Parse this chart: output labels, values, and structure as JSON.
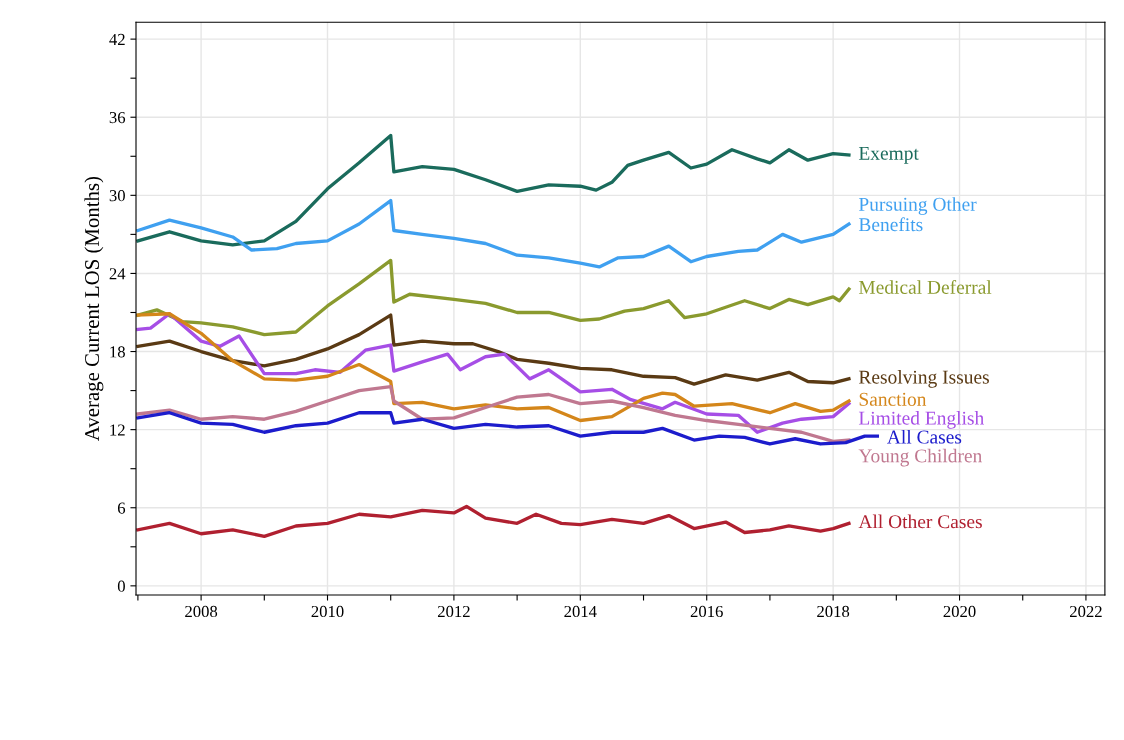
{
  "chart_data": {
    "type": "line",
    "ylabel": "Average Current LOS (Months)",
    "xlim": [
      2006.97,
      2022.3
    ],
    "ylim": [
      -0.7,
      43.3
    ],
    "xticks": [
      {
        "value": 2007,
        "label": null
      },
      2008,
      {
        "value": 2009,
        "label": null
      },
      2010,
      {
        "value": 2011,
        "label": null
      },
      2012,
      {
        "value": 2013,
        "label": null
      },
      2014,
      {
        "value": 2015,
        "label": null
      },
      2016,
      {
        "value": 2017,
        "label": null
      },
      2018,
      {
        "value": 2019,
        "label": null
      },
      2020,
      {
        "value": 2021,
        "label": null
      },
      2022
    ],
    "yticks": [
      0,
      {
        "value": 3,
        "label": null
      },
      6,
      {
        "value": 9,
        "label": null
      },
      12,
      {
        "value": 15,
        "label": null
      },
      18,
      {
        "value": 21,
        "label": null
      },
      24,
      {
        "value": 27,
        "label": null
      },
      30,
      {
        "value": 33,
        "label": null
      },
      36,
      {
        "value": 39,
        "label": null
      },
      42
    ],
    "grid": true,
    "legend": false,
    "marker": "none",
    "line_style": "solid",
    "series": [
      {
        "name": "Exempt",
        "color": "#1a6b5c",
        "x": [
          2007,
          2007.5,
          2008,
          2008.5,
          2009,
          2009.5,
          2010,
          2010.5,
          2011.0,
          2011.05,
          2011.5,
          2012,
          2012.5,
          2013,
          2013.5,
          2014,
          2014.25,
          2014.5,
          2014.75,
          2015,
          2015.4,
          2015.75,
          2016,
          2016.4,
          2016.8,
          2017,
          2017.3,
          2017.6,
          2018,
          2018.25
        ],
        "values": [
          26.5,
          27.2,
          26.5,
          26.2,
          26.5,
          28,
          30.5,
          32.5,
          34.6,
          31.8,
          32.2,
          32.0,
          31.2,
          30.3,
          30.8,
          30.7,
          30.4,
          31.0,
          32.3,
          32.7,
          33.3,
          32.1,
          32.4,
          33.5,
          32.8,
          32.5,
          33.5,
          32.7,
          33.2,
          33.1
        ]
      },
      {
        "name": "Pursuing Other\nBenefits",
        "color": "#3fa0f0",
        "x": [
          2007,
          2007.5,
          2008,
          2008.5,
          2008.8,
          2009.2,
          2009.5,
          2010,
          2010.5,
          2011.0,
          2011.05,
          2011.5,
          2012,
          2012.5,
          2013,
          2013.5,
          2014,
          2014.3,
          2014.6,
          2015,
          2015.4,
          2015.75,
          2016,
          2016.5,
          2016.8,
          2017.2,
          2017.5,
          2018,
          2018.25
        ],
        "values": [
          27.3,
          28.1,
          27.5,
          26.8,
          25.8,
          25.9,
          26.3,
          26.5,
          27.8,
          29.6,
          27.3,
          27.0,
          26.7,
          26.3,
          25.4,
          25.2,
          24.8,
          24.5,
          25.2,
          25.3,
          26.1,
          24.9,
          25.3,
          25.7,
          25.8,
          27.0,
          26.4,
          27.0,
          27.8
        ]
      },
      {
        "name": "Medical Deferral",
        "color": "#8a9a2e",
        "x": [
          2007,
          2007.3,
          2007.7,
          2008,
          2008.5,
          2009,
          2009.5,
          2010,
          2010.5,
          2011.0,
          2011.05,
          2011.3,
          2012,
          2012.5,
          2013,
          2013.5,
          2014,
          2014.3,
          2014.7,
          2015,
          2015.4,
          2015.65,
          2016,
          2016.6,
          2017,
          2017.3,
          2017.6,
          2018,
          2018.1,
          2018.25
        ],
        "values": [
          20.8,
          21.2,
          20.3,
          20.2,
          19.9,
          19.3,
          19.5,
          21.5,
          23.2,
          25.0,
          21.8,
          22.4,
          22.0,
          21.7,
          21.0,
          21.0,
          20.4,
          20.5,
          21.1,
          21.3,
          21.9,
          20.6,
          20.9,
          21.9,
          21.3,
          22.0,
          21.6,
          22.2,
          21.9,
          22.8
        ]
      },
      {
        "name": "Resolving Issues",
        "color": "#5a3a14",
        "x": [
          2007,
          2007.5,
          2008,
          2008.5,
          2009,
          2009.5,
          2010,
          2010.5,
          2011.0,
          2011.05,
          2011.5,
          2012,
          2012.3,
          2012.7,
          2013,
          2013.5,
          2014,
          2014.5,
          2015,
          2015.5,
          2015.8,
          2016.3,
          2016.8,
          2017.3,
          2017.6,
          2018,
          2018.25
        ],
        "values": [
          18.4,
          18.8,
          18.0,
          17.3,
          16.9,
          17.4,
          18.2,
          19.3,
          20.8,
          18.5,
          18.8,
          18.6,
          18.6,
          18.0,
          17.4,
          17.1,
          16.7,
          16.6,
          16.1,
          16.0,
          15.5,
          16.2,
          15.8,
          16.4,
          15.7,
          15.6,
          15.9
        ]
      },
      {
        "name": "Limited English",
        "color": "#a64ee6",
        "x": [
          2007,
          2007.2,
          2007.5,
          2008,
          2008.3,
          2008.6,
          2009,
          2009.5,
          2009.8,
          2010.2,
          2010.6,
          2011.0,
          2011.05,
          2011.5,
          2011.9,
          2012.1,
          2012.5,
          2012.8,
          2013.2,
          2013.5,
          2014,
          2014.5,
          2014.8,
          2015.3,
          2015.5,
          2016,
          2016.5,
          2016.8,
          2017.2,
          2017.5,
          2018,
          2018.25
        ],
        "values": [
          19.7,
          19.8,
          20.9,
          18.8,
          18.4,
          19.2,
          16.3,
          16.3,
          16.6,
          16.4,
          18.1,
          18.5,
          16.5,
          17.2,
          17.8,
          16.6,
          17.6,
          17.8,
          15.9,
          16.6,
          14.9,
          15.1,
          14.3,
          13.6,
          14.1,
          13.2,
          13.1,
          11.8,
          12.5,
          12.8,
          13.0,
          14.0
        ]
      },
      {
        "name": "Sanction",
        "color": "#d4861a",
        "x": [
          2007,
          2007.5,
          2008,
          2008.5,
          2009,
          2009.5,
          2010,
          2010.5,
          2011.0,
          2011.05,
          2011.5,
          2012,
          2012.5,
          2013,
          2013.5,
          2014,
          2014.5,
          2015,
          2015.3,
          2015.5,
          2015.8,
          2016.4,
          2017,
          2017.4,
          2017.8,
          2018,
          2018.25
        ],
        "values": [
          20.8,
          20.9,
          19.4,
          17.3,
          15.9,
          15.8,
          16.1,
          17.0,
          15.7,
          14.0,
          14.1,
          13.6,
          13.9,
          13.6,
          13.7,
          12.7,
          13.0,
          14.4,
          14.8,
          14.7,
          13.8,
          14.0,
          13.3,
          14.0,
          13.4,
          13.5,
          14.2
        ]
      },
      {
        "name": "Young Children",
        "color": "#c07890",
        "x": [
          2007,
          2007.5,
          2008,
          2008.5,
          2009,
          2009.5,
          2010,
          2010.5,
          2011.0,
          2011.05,
          2011.5,
          2012,
          2012.5,
          2013,
          2013.5,
          2014,
          2014.5,
          2015,
          2015.5,
          2016,
          2016.5,
          2017,
          2017.5,
          2018,
          2018.25
        ],
        "values": [
          13.2,
          13.5,
          12.8,
          13.0,
          12.8,
          13.4,
          14.2,
          15.0,
          15.3,
          14.2,
          12.8,
          12.9,
          13.7,
          14.5,
          14.7,
          14.0,
          14.2,
          13.7,
          13.1,
          12.7,
          12.4,
          12.1,
          11.8,
          11.1,
          11.2
        ]
      },
      {
        "name": "All Cases",
        "color": "#1c1ccc",
        "x": [
          2007,
          2007.5,
          2008,
          2008.5,
          2009,
          2009.5,
          2010,
          2010.5,
          2011.0,
          2011.05,
          2011.5,
          2012,
          2012.5,
          2013,
          2013.5,
          2014,
          2014.5,
          2015,
          2015.3,
          2015.8,
          2016.2,
          2016.6,
          2017,
          2017.4,
          2017.8,
          2018.2,
          2018.5,
          2018.7
        ],
        "values": [
          12.9,
          13.3,
          12.5,
          12.4,
          11.8,
          12.3,
          12.5,
          13.3,
          13.3,
          12.5,
          12.8,
          12.1,
          12.4,
          12.2,
          12.3,
          11.5,
          11.8,
          11.8,
          12.1,
          11.2,
          11.5,
          11.4,
          10.9,
          11.3,
          10.9,
          11.0,
          11.5,
          11.5
        ]
      },
      {
        "name": "All Other Cases",
        "color": "#b02030",
        "x": [
          2007,
          2007.5,
          2008,
          2008.5,
          2009,
          2009.5,
          2010,
          2010.5,
          2011,
          2011.5,
          2012,
          2012.2,
          2012.5,
          2013,
          2013.3,
          2013.7,
          2014,
          2014.5,
          2015,
          2015.4,
          2015.8,
          2016.3,
          2016.6,
          2017,
          2017.3,
          2017.8,
          2018,
          2018.25
        ],
        "values": [
          4.3,
          4.8,
          4.0,
          4.3,
          3.8,
          4.6,
          4.8,
          5.5,
          5.3,
          5.8,
          5.6,
          6.1,
          5.2,
          4.8,
          5.5,
          4.8,
          4.7,
          5.1,
          4.8,
          5.4,
          4.4,
          4.9,
          4.1,
          4.3,
          4.6,
          4.2,
          4.4,
          4.8
        ]
      }
    ]
  }
}
